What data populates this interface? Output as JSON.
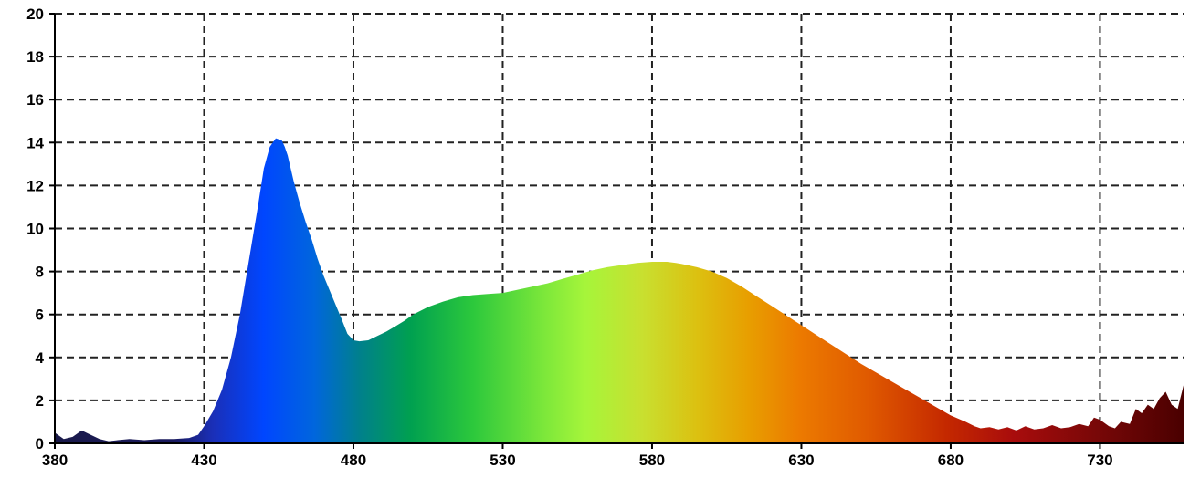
{
  "chart_data": {
    "type": "area",
    "title": "",
    "xlabel": "",
    "ylabel": "",
    "xlim": [
      380,
      758
    ],
    "ylim": [
      0,
      20
    ],
    "grid": true,
    "legend": "none",
    "x_ticks": [
      "380",
      "430",
      "480",
      "530",
      "580",
      "630",
      "680",
      "730"
    ],
    "y_ticks": [
      "0",
      "2",
      "4",
      "6",
      "8",
      "10",
      "12",
      "14",
      "16",
      "18",
      "20"
    ],
    "series": [
      {
        "x": [
          380,
          383,
          386,
          389,
          392,
          395,
          398,
          401,
          405,
          410,
          415,
          420,
          425,
          428,
          430,
          433,
          436,
          439,
          442,
          445,
          448,
          450,
          452,
          454,
          456,
          457,
          458,
          459,
          460,
          462,
          464,
          466,
          468,
          470,
          473,
          476,
          478,
          480,
          482,
          485,
          488,
          491,
          494,
          497,
          500,
          505,
          510,
          515,
          520,
          525,
          530,
          535,
          540,
          545,
          550,
          555,
          560,
          565,
          570,
          575,
          580,
          585,
          588,
          590,
          595,
          600,
          605,
          610,
          615,
          620,
          625,
          630,
          635,
          640,
          645,
          650,
          655,
          660,
          665,
          670,
          675,
          680,
          685,
          688,
          690,
          693,
          696,
          699,
          702,
          705,
          708,
          711,
          714,
          717,
          720,
          723,
          726,
          728,
          730,
          733,
          735,
          737,
          740,
          742,
          744,
          746,
          748,
          750,
          752,
          754,
          756,
          758
        ],
        "values": [
          0.5,
          0.2,
          0.3,
          0.6,
          0.4,
          0.2,
          0.1,
          0.15,
          0.2,
          0.15,
          0.2,
          0.2,
          0.25,
          0.4,
          0.8,
          1.5,
          2.5,
          4.0,
          6.0,
          8.5,
          11.0,
          12.8,
          13.8,
          14.2,
          14.1,
          13.8,
          13.4,
          12.8,
          12.2,
          11.2,
          10.3,
          9.5,
          8.6,
          7.8,
          6.8,
          5.8,
          5.1,
          4.8,
          4.75,
          4.8,
          5.0,
          5.2,
          5.45,
          5.7,
          6.0,
          6.35,
          6.6,
          6.8,
          6.9,
          6.95,
          7.0,
          7.15,
          7.3,
          7.45,
          7.65,
          7.85,
          8.05,
          8.2,
          8.3,
          8.4,
          8.45,
          8.45,
          8.4,
          8.35,
          8.2,
          8.0,
          7.7,
          7.3,
          6.85,
          6.4,
          5.95,
          5.5,
          5.05,
          4.6,
          4.15,
          3.7,
          3.3,
          2.9,
          2.5,
          2.1,
          1.7,
          1.3,
          1.0,
          0.8,
          0.7,
          0.75,
          0.65,
          0.75,
          0.6,
          0.8,
          0.65,
          0.7,
          0.85,
          0.7,
          0.75,
          0.9,
          0.8,
          1.2,
          1.1,
          0.8,
          0.7,
          1.0,
          0.9,
          1.6,
          1.4,
          1.8,
          1.6,
          2.1,
          2.4,
          1.8,
          1.6,
          2.7
        ]
      }
    ]
  }
}
